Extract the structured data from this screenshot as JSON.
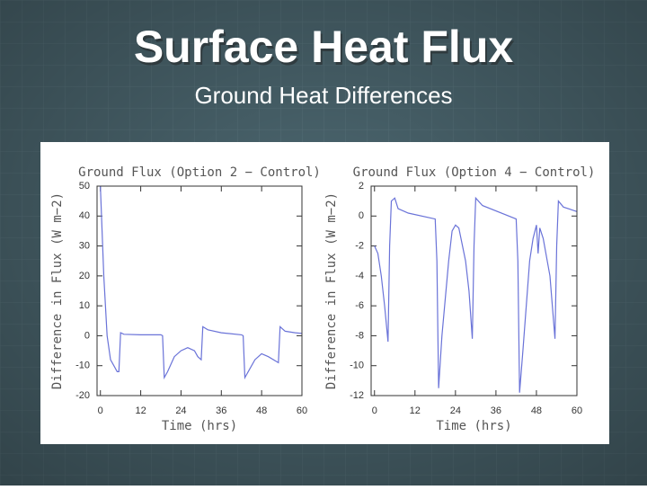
{
  "title": "Surface Heat Flux",
  "subtitle": "Ground Heat Differences",
  "chart_data": [
    {
      "type": "line",
      "title": "Ground Flux (Option 2 − Control)",
      "x_label": "Time (hrs)",
      "y_label": "Difference in Flux (W m−2)",
      "x": [
        0,
        1,
        2,
        3,
        4,
        5,
        5.5,
        6,
        7,
        12,
        18,
        18.5,
        19,
        20,
        22,
        24,
        26,
        28,
        29,
        30,
        30.5,
        32,
        36,
        42,
        42.5,
        43,
        44,
        46,
        48,
        50,
        53,
        53.5,
        55,
        58,
        60
      ],
      "series": [
        {
          "color": "#6a73d8",
          "values": [
            50,
            20,
            0,
            -8,
            -10,
            -12,
            -12,
            1,
            0.5,
            0.3,
            0.3,
            0,
            -14,
            -12,
            -7,
            -5,
            -4,
            -5,
            -7,
            -8,
            3,
            2,
            1,
            0.3,
            0,
            -14,
            -12,
            -8,
            -6,
            -7,
            -9,
            3,
            1.5,
            1,
            0.8
          ]
        }
      ],
      "xlim": [
        -1,
        60
      ],
      "xticks": [
        0,
        12,
        24,
        36,
        48,
        60
      ],
      "ylim": [
        -20,
        50
      ],
      "yticks": [
        -20,
        -10,
        0,
        10,
        20,
        30,
        40,
        50
      ]
    },
    {
      "type": "line",
      "title": "Ground Flux (Option 4 − Control)",
      "x_label": "Time (hrs)",
      "y_label": "Difference in Flux (W m−2)",
      "x": [
        0,
        1,
        2,
        3,
        4,
        4.5,
        5,
        6,
        7,
        10,
        18,
        18.5,
        19,
        20,
        22,
        23,
        24,
        25,
        27,
        28,
        29,
        29.5,
        30,
        32,
        42,
        42.5,
        43,
        44,
        46,
        47,
        48,
        48.5,
        49,
        50,
        52,
        53.5,
        54,
        54.5,
        56,
        60
      ],
      "series": [
        {
          "color": "#6a73d8",
          "values": [
            -2,
            -2.5,
            -4,
            -6,
            -8.4,
            -2,
            1,
            1.2,
            0.5,
            0.2,
            -0.2,
            -3,
            -11.5,
            -8,
            -3,
            -1,
            -0.6,
            -0.8,
            -3,
            -5,
            -8.2,
            -2,
            1.2,
            0.7,
            -0.2,
            -3,
            -11.8,
            -9,
            -3,
            -1.5,
            -0.6,
            -2.5,
            -0.8,
            -1.5,
            -4,
            -8.2,
            -2,
            1,
            0.6,
            0.3
          ]
        }
      ],
      "xlim": [
        -1,
        60
      ],
      "xticks": [
        0,
        12,
        24,
        36,
        48,
        60
      ],
      "ylim": [
        -12,
        2
      ],
      "yticks": [
        -12,
        -10,
        -8,
        -6,
        -4,
        -2,
        0,
        2
      ]
    }
  ]
}
